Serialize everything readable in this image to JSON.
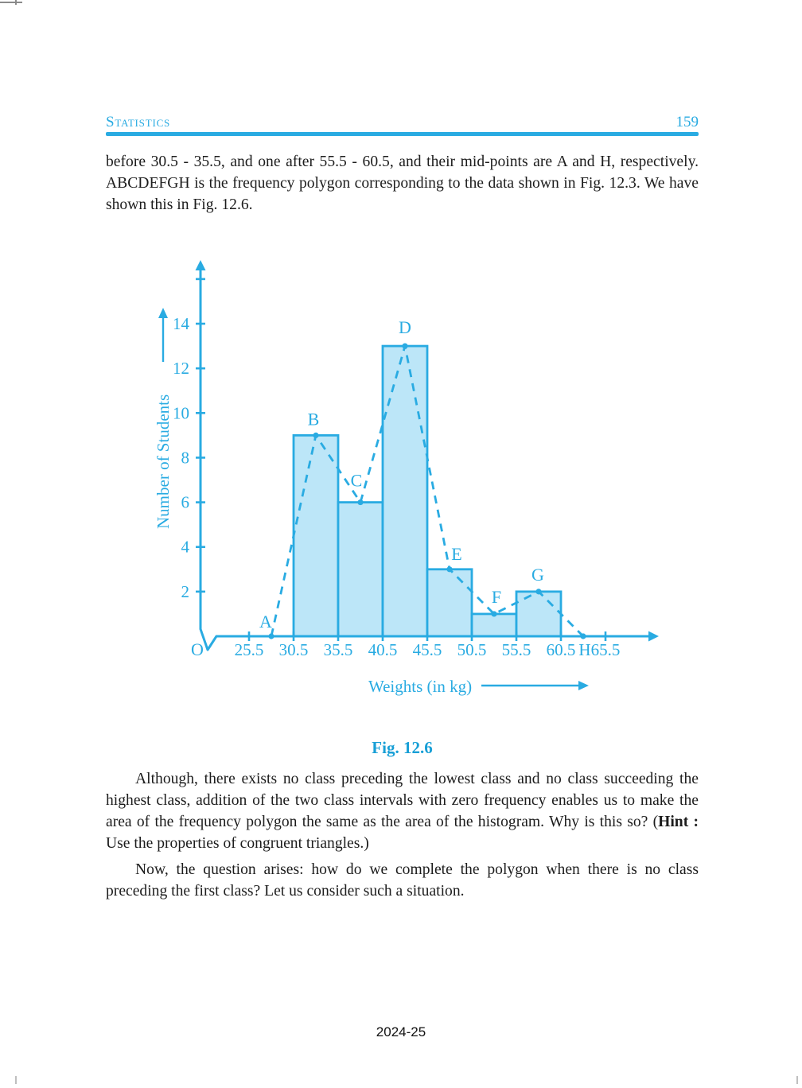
{
  "header": {
    "title": "Statistics",
    "page_number": "159"
  },
  "paragraphs": {
    "intro": "before 30.5 - 35.5, and one after 55.5 - 60.5, and their mid-points are A and H, respectively. ABCDEFGH is the frequency polygon corresponding to the data shown in Fig. 12.3. We have shown this in Fig. 12.6.",
    "although_pre": "Although, there exists no class preceding the lowest class and no class succeeding the highest class, addition of the two class intervals with zero frequency enables us to make the area of the frequency polygon the same as the area of the histogram. Why is this so? (",
    "hint_label": "Hint :",
    "although_post": " Use the properties of congruent triangles.)",
    "now": "Now, the question arises: how do we complete the polygon when there is no class preceding the first class? Let us consider such a situation."
  },
  "figure_caption": "Fig. 12.6",
  "footer": "2024-25",
  "colors": {
    "accent": "#29ABE2",
    "bar_fill": "#BCE6F8",
    "caption": "#189FD6"
  },
  "chart_data": {
    "type": "bar",
    "subtype": "histogram_with_frequency_polygon",
    "title": "Fig. 12.6",
    "xlabel": "Weights (in kg)",
    "ylabel": "Number of Students",
    "origin_label": "O",
    "x_axis_break_before_first_tick": true,
    "class_boundaries": [
      25.5,
      30.5,
      35.5,
      40.5,
      45.5,
      50.5,
      55.5,
      60.5,
      65.5
    ],
    "categories": [
      "30.5-35.5",
      "35.5-40.5",
      "40.5-45.5",
      "45.5-50.5",
      "50.5-55.5",
      "55.5-60.5"
    ],
    "values": [
      9,
      6,
      13,
      3,
      1,
      2
    ],
    "y_ticks": [
      2,
      4,
      6,
      8,
      10,
      12,
      14
    ],
    "y_unlabeled_ticks": [
      16
    ],
    "ylim": [
      0,
      16.8
    ],
    "xlim": [
      25.5,
      68
    ],
    "grid": false,
    "legend": null,
    "polygon_points": [
      {
        "label": "A",
        "x": 28,
        "y": 0
      },
      {
        "label": "B",
        "x": 33,
        "y": 9
      },
      {
        "label": "C",
        "x": 38,
        "y": 6
      },
      {
        "label": "D",
        "x": 43,
        "y": 13
      },
      {
        "label": "E",
        "x": 48,
        "y": 3
      },
      {
        "label": "F",
        "x": 53,
        "y": 1
      },
      {
        "label": "G",
        "x": 58,
        "y": 2
      },
      {
        "label": "H",
        "x": 63,
        "y": 0
      }
    ]
  }
}
